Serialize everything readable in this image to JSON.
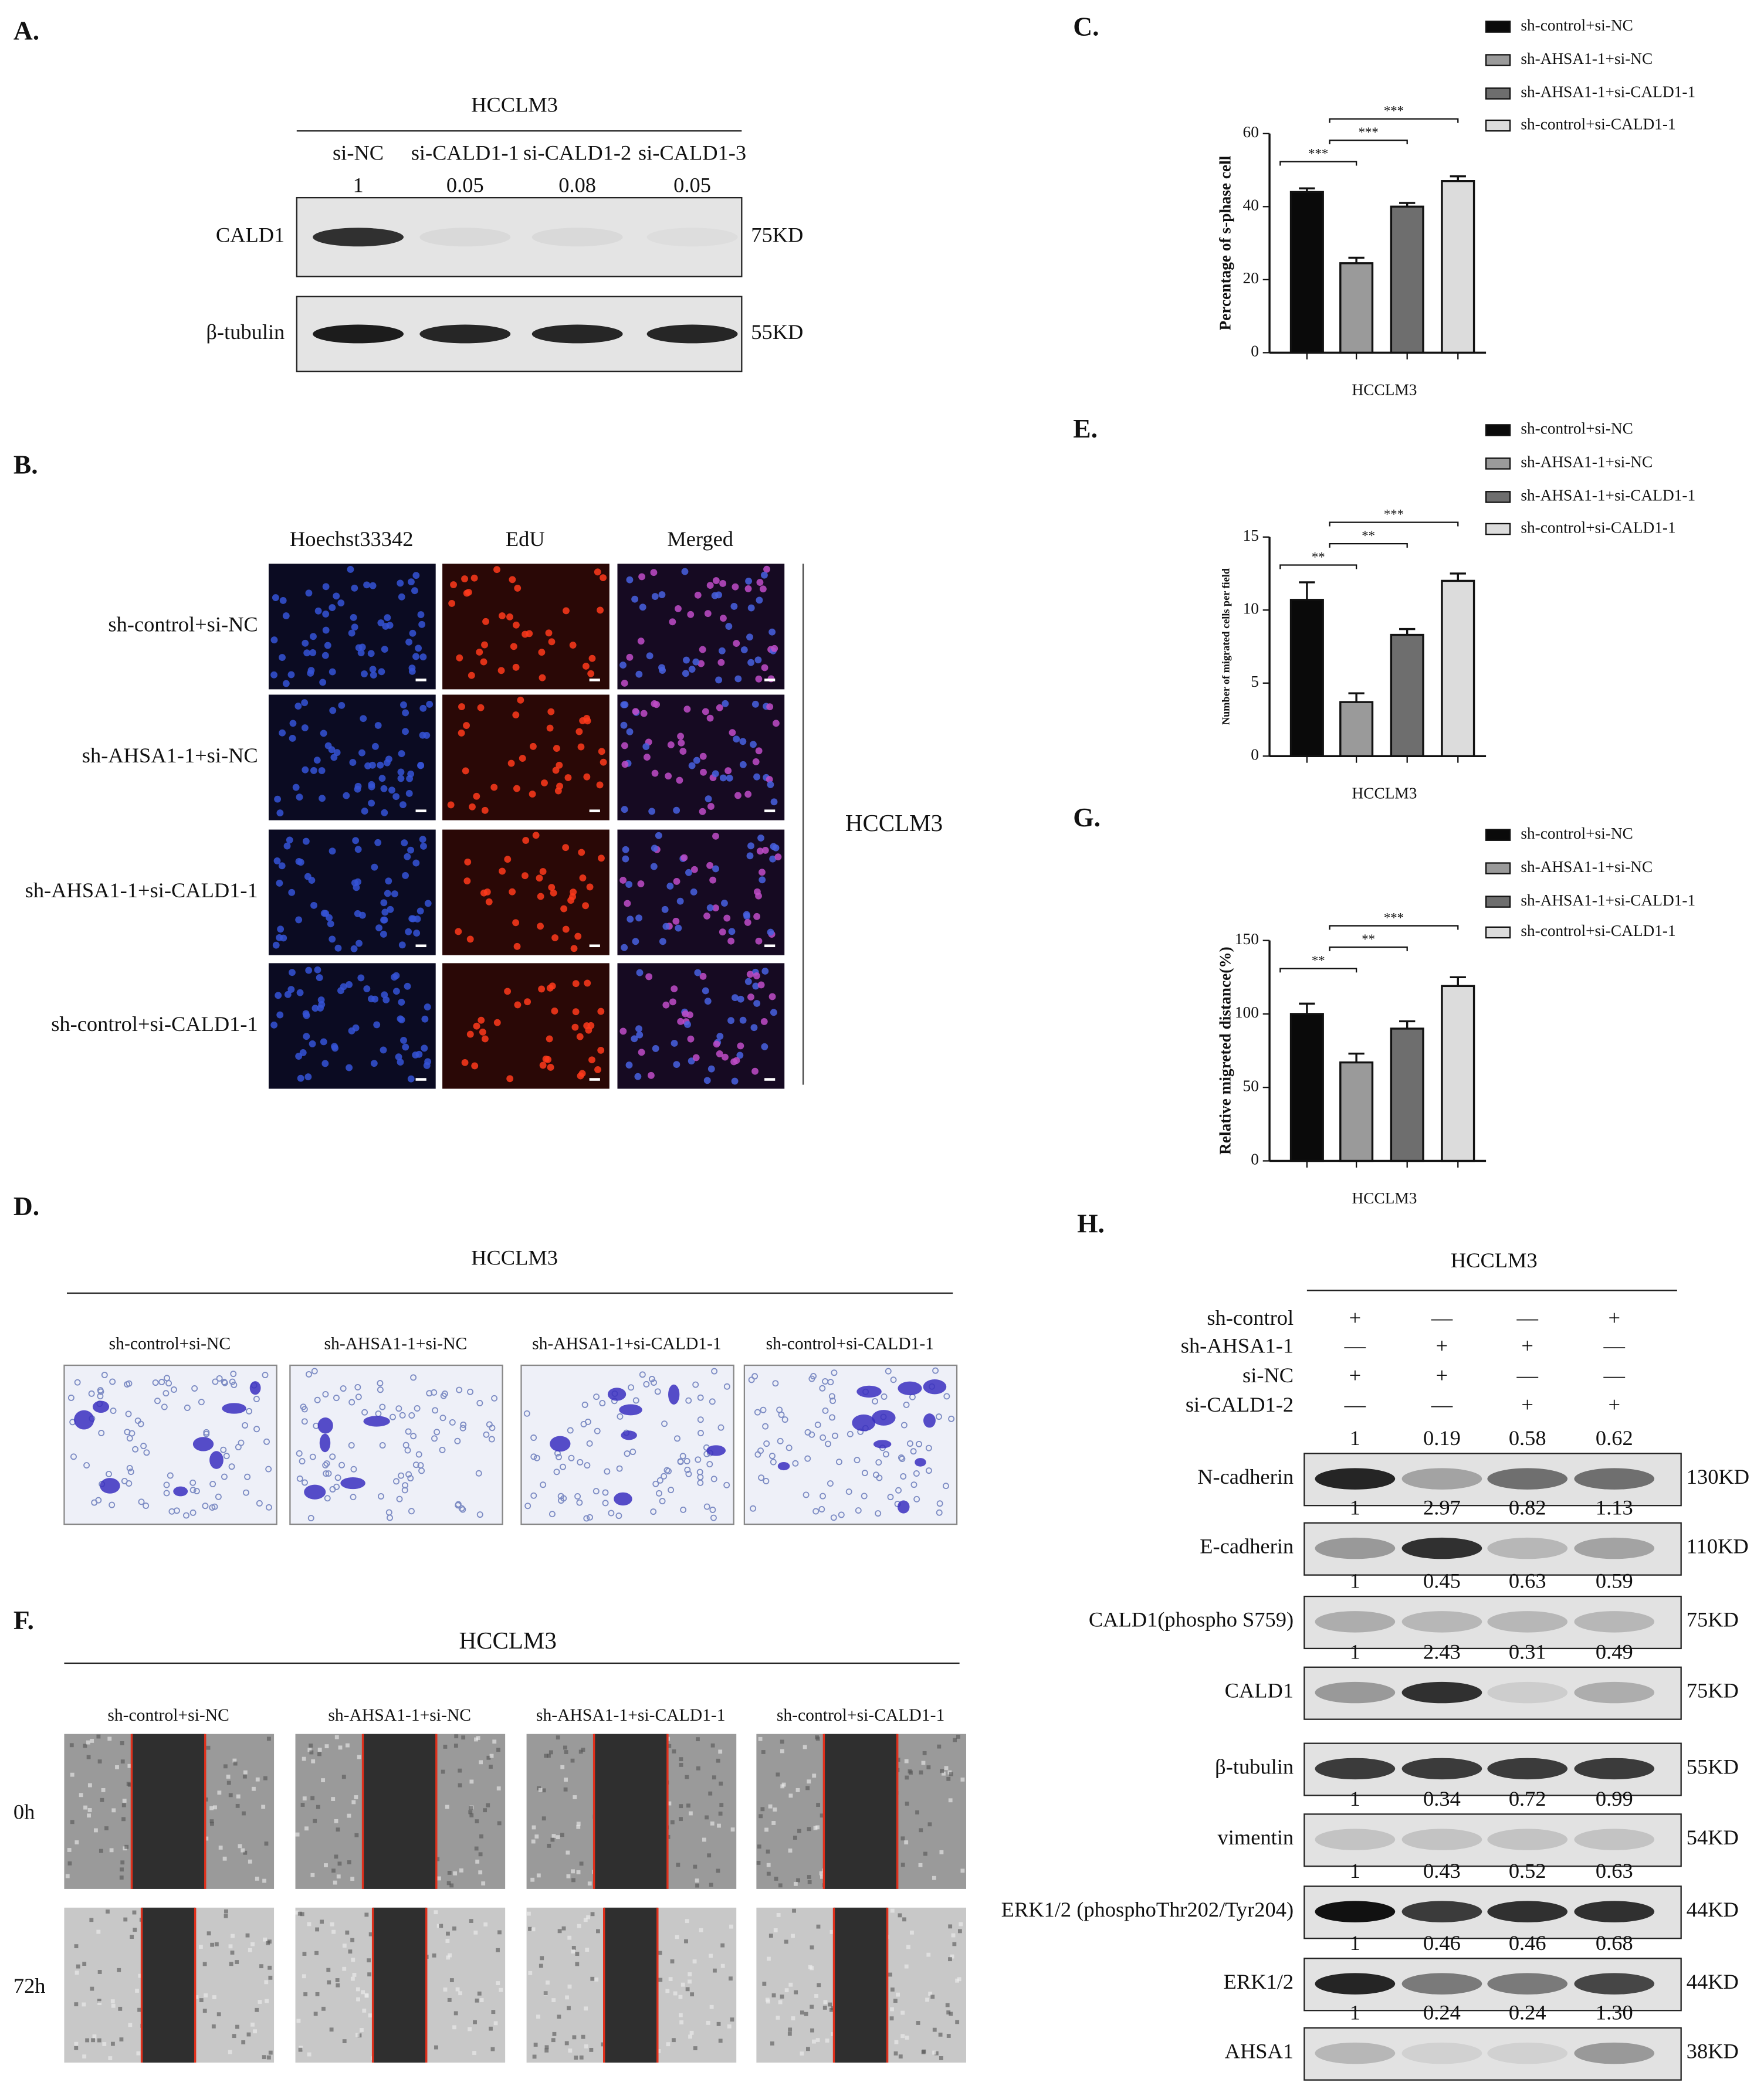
{
  "panel_a": {
    "label": "A.",
    "cell_line": "HCCLM3",
    "lanes": [
      "si-NC",
      "si-CALD1-1",
      "si-CALD1-2",
      "si-CALD1-3"
    ],
    "ratios": [
      "1",
      "0.05",
      "0.08",
      "0.05"
    ],
    "blots": [
      {
        "name": "CALD1",
        "size": "75KD"
      },
      {
        "name": "β-tubulin",
        "size": "55KD"
      }
    ]
  },
  "panel_b": {
    "label": "B.",
    "columns": [
      "Hoechst33342",
      "EdU",
      "Merged"
    ],
    "rows": [
      "sh-control+si-NC",
      "sh-AHSA1-1+si-NC",
      "sh-AHSA1-1+si-CALD1-1",
      "sh-control+si-CALD1-1"
    ],
    "cell_line": "HCCLM3"
  },
  "chart_data": [
    {
      "type": "bar",
      "label": "C.",
      "ylabel": "Percentage of s-phase cell",
      "xlabel": "HCCLM3",
      "categories": [
        "sh-control+si-NC",
        "sh-AHSA1-1+si-NC",
        "sh-AHSA1-1+si-CALD1-1",
        "sh-control+si-CALD1-1"
      ],
      "values": [
        44,
        24.5,
        40,
        47
      ],
      "errors": [
        1,
        1.5,
        1,
        1.3
      ],
      "colors": [
        "#0a0a0a",
        "#9a9a9a",
        "#6e6e6e",
        "#dcdcdc"
      ],
      "ylim": [
        0,
        60
      ],
      "yticks": [
        0,
        20,
        40,
        60
      ],
      "significance": [
        {
          "pair": [
            0,
            1
          ],
          "label": "***"
        },
        {
          "pair": [
            1,
            2
          ],
          "label": "***"
        },
        {
          "pair": [
            1,
            3
          ],
          "label": "***"
        }
      ]
    },
    {
      "type": "bar",
      "label": "E.",
      "ylabel": "Number of migrated cells per field",
      "xlabel": "HCCLM3",
      "categories": [
        "sh-control+si-NC",
        "sh-AHSA1-1+si-NC",
        "sh-AHSA1-1+si-CALD1-1",
        "sh-control+si-CALD1-1"
      ],
      "values": [
        10.7,
        3.7,
        8.3,
        12
      ],
      "errors": [
        1.2,
        0.6,
        0.4,
        0.5
      ],
      "colors": [
        "#0a0a0a",
        "#9a9a9a",
        "#6e6e6e",
        "#dcdcdc"
      ],
      "ylim": [
        0,
        15
      ],
      "yticks": [
        0,
        5,
        10,
        15
      ],
      "significance": [
        {
          "pair": [
            0,
            1
          ],
          "label": "**"
        },
        {
          "pair": [
            1,
            2
          ],
          "label": "**"
        },
        {
          "pair": [
            1,
            3
          ],
          "label": "***"
        }
      ]
    },
    {
      "type": "bar",
      "label": "G.",
      "ylabel": "Relative migreted distance(%)",
      "xlabel": "HCCLM3",
      "categories": [
        "sh-control+si-NC",
        "sh-AHSA1-1+si-NC",
        "sh-AHSA1-1+si-CALD1-1",
        "sh-control+si-CALD1-1"
      ],
      "values": [
        100,
        67,
        90,
        119
      ],
      "errors": [
        7,
        6,
        5,
        6
      ],
      "colors": [
        "#0a0a0a",
        "#9a9a9a",
        "#6e6e6e",
        "#dcdcdc"
      ],
      "ylim": [
        0,
        150
      ],
      "yticks": [
        0,
        50,
        100,
        150
      ],
      "significance": [
        {
          "pair": [
            0,
            1
          ],
          "label": "**"
        },
        {
          "pair": [
            1,
            2
          ],
          "label": "**"
        },
        {
          "pair": [
            1,
            3
          ],
          "label": "***"
        }
      ]
    }
  ],
  "panel_d": {
    "label": "D.",
    "cell_line": "HCCLM3",
    "groups": [
      "sh-control+si-NC",
      "sh-AHSA1-1+si-NC",
      "sh-AHSA1-1+si-CALD1-1",
      "sh-control+si-CALD1-1"
    ]
  },
  "panel_f": {
    "label": "F.",
    "cell_line": "HCCLM3",
    "groups": [
      "sh-control+si-NC",
      "sh-AHSA1-1+si-NC",
      "sh-AHSA1-1+si-CALD1-1",
      "sh-control+si-CALD1-1"
    ],
    "times": [
      "0h",
      "72h"
    ]
  },
  "panel_h": {
    "label": "H.",
    "cell_line": "HCCLM3",
    "treatments": [
      {
        "name": "sh-control",
        "marks": [
          "+",
          "—",
          "—",
          "+"
        ]
      },
      {
        "name": "sh-AHSA1-1",
        "marks": [
          "—",
          "+",
          "+",
          "—"
        ]
      },
      {
        "name": "si-NC",
        "marks": [
          "+",
          "+",
          "—",
          "—"
        ]
      },
      {
        "name": "si-CALD1-2",
        "marks": [
          "—",
          "—",
          "+",
          "+"
        ]
      }
    ],
    "blots": [
      {
        "name": "N-cadherin",
        "size": "130KD",
        "ratios": [
          "1",
          "0.19",
          "0.58",
          "0.62"
        ]
      },
      {
        "name": "E-cadherin",
        "size": "110KD",
        "ratios": [
          "1",
          "2.97",
          "0.82",
          "1.13"
        ]
      },
      {
        "name": "CALD1(phospho S759)",
        "size": "75KD",
        "ratios": [
          "1",
          "0.45",
          "0.63",
          "0.59"
        ]
      },
      {
        "name": "CALD1",
        "size": "75KD",
        "ratios": [
          "1",
          "2.43",
          "0.31",
          "0.49"
        ]
      },
      {
        "name": "β-tubulin",
        "size": "55KD"
      },
      {
        "name": "vimentin",
        "size": "54KD",
        "ratios": [
          "1",
          "0.34",
          "0.72",
          "0.99"
        ]
      },
      {
        "name": "ERK1/2 (phosphoThr202/Tyr204)",
        "size": "44KD",
        "ratios": [
          "1",
          "0.43",
          "0.52",
          "0.63"
        ]
      },
      {
        "name": "ERK1/2",
        "size": "44KD",
        "ratios": [
          "1",
          "0.46",
          "0.46",
          "0.68"
        ]
      },
      {
        "name": "AHSA1",
        "size": "38KD",
        "ratios": [
          "1",
          "0.24",
          "0.24",
          "1.30"
        ]
      }
    ]
  }
}
